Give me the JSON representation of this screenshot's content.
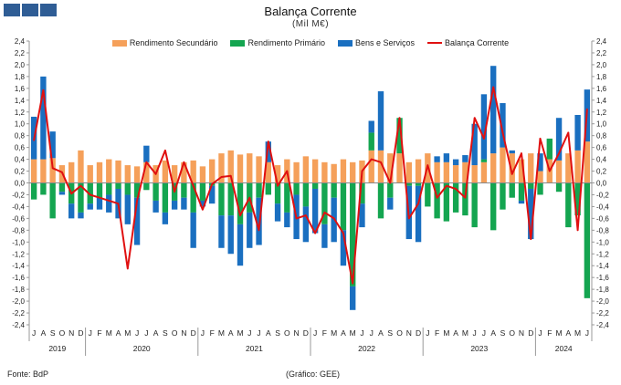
{
  "header": {
    "title": "Balança Corrente",
    "subtitle": "(Mil M€)"
  },
  "footer": {
    "source": "Fonte: BdP",
    "credit": "(Gráfico: GEE)"
  },
  "chart_data": {
    "type": "bar",
    "title": "Balança Corrente",
    "subtitle": "(Mil M€)",
    "ylim": [
      -2.4,
      2.4
    ],
    "ytick_step": 0.2,
    "grid": false,
    "legend_position": "top-center",
    "stacked": true,
    "month_labels": [
      "J",
      "A",
      "S",
      "O",
      "N",
      "D",
      "J",
      "F",
      "M",
      "A",
      "M",
      "J",
      "J",
      "A",
      "S",
      "O",
      "N",
      "D",
      "J",
      "F",
      "M",
      "A",
      "M",
      "J",
      "J",
      "A",
      "S",
      "O",
      "N",
      "D",
      "J",
      "F",
      "M",
      "A",
      "M",
      "J",
      "J",
      "A",
      "S",
      "O",
      "N",
      "D",
      "J",
      "F",
      "M",
      "A",
      "M",
      "J",
      "J",
      "A",
      "S",
      "O",
      "N",
      "D",
      "J",
      "F",
      "M",
      "A",
      "M",
      "J"
    ],
    "years": [
      {
        "label": "2019",
        "start": 0,
        "count": 6
      },
      {
        "label": "2020",
        "start": 6,
        "count": 12
      },
      {
        "label": "2021",
        "start": 18,
        "count": 12
      },
      {
        "label": "2022",
        "start": 30,
        "count": 12
      },
      {
        "label": "2023",
        "start": 42,
        "count": 12
      },
      {
        "label": "2024",
        "start": 54,
        "count": 6
      }
    ],
    "series": [
      {
        "name": "Rendimento Secundário",
        "kind": "bar",
        "color": "#f5a05a",
        "values": [
          0.4,
          0.4,
          0.42,
          0.3,
          0.35,
          0.55,
          0.3,
          0.35,
          0.4,
          0.38,
          0.3,
          0.28,
          0.35,
          0.3,
          0.38,
          0.3,
          0.35,
          0.38,
          0.28,
          0.4,
          0.5,
          0.55,
          0.48,
          0.5,
          0.45,
          0.35,
          0.3,
          0.4,
          0.35,
          0.45,
          0.4,
          0.35,
          0.32,
          0.4,
          0.35,
          0.38,
          0.55,
          0.55,
          0.5,
          0.5,
          0.35,
          0.4,
          0.5,
          0.35,
          0.35,
          0.3,
          0.35,
          0.3,
          0.35,
          0.5,
          0.6,
          0.5,
          0.4,
          0.5,
          0.2,
          0.4,
          0.38,
          0.5,
          0.55,
          0.7
        ]
      },
      {
        "name": "Rendimento Primário",
        "kind": "bar",
        "color": "#14a550",
        "values": [
          -0.28,
          -0.2,
          -0.6,
          -0.15,
          -0.35,
          -0.5,
          -0.35,
          -0.25,
          -0.2,
          -0.1,
          -0.2,
          -0.25,
          -0.12,
          -0.3,
          -0.5,
          -0.3,
          -0.25,
          -0.5,
          -0.3,
          -0.05,
          -0.55,
          -0.55,
          -0.7,
          -0.5,
          -0.25,
          -0.2,
          -0.35,
          -0.5,
          -0.2,
          -0.4,
          -0.1,
          -0.7,
          -0.25,
          -0.8,
          -1.75,
          -0.35,
          0.3,
          -0.6,
          -0.25,
          0.6,
          -0.05,
          -0.05,
          -0.4,
          -0.6,
          -0.65,
          -0.5,
          -0.55,
          -0.75,
          0.05,
          -0.8,
          -0.45,
          -0.25,
          -0.3,
          -0.1,
          -0.2,
          0.35,
          -0.15,
          -0.75,
          -0.55,
          -1.95
        ]
      },
      {
        "name": "Bens e Serviços",
        "kind": "bar",
        "color": "#1a6fc0",
        "values": [
          0.72,
          1.4,
          0.45,
          -0.05,
          -0.25,
          -0.1,
          -0.1,
          -0.2,
          -0.3,
          -0.5,
          -0.5,
          -0.8,
          0.28,
          -0.2,
          -0.2,
          -0.15,
          -0.2,
          -0.6,
          -0.1,
          -0.3,
          -0.55,
          -0.65,
          -0.7,
          -0.6,
          -0.8,
          0.35,
          -0.3,
          -0.25,
          -0.75,
          -0.6,
          -0.75,
          -0.4,
          -0.75,
          -0.6,
          -0.4,
          -0.4,
          0.2,
          1.0,
          -0.2,
          0.0,
          -0.9,
          -0.95,
          0.0,
          0.1,
          0.15,
          0.1,
          0.12,
          0.7,
          1.1,
          1.48,
          0.75,
          0.05,
          -0.05,
          -0.85,
          0.3,
          0.0,
          0.72,
          0.0,
          0.6,
          0.88
        ]
      },
      {
        "name": "Balança Corrente",
        "kind": "line",
        "color": "#e01010",
        "values": [
          0.72,
          1.57,
          0.25,
          0.18,
          -0.18,
          -0.05,
          -0.2,
          -0.25,
          -0.3,
          -0.35,
          -1.45,
          -0.3,
          0.35,
          0.15,
          0.55,
          -0.15,
          0.35,
          -0.05,
          -0.45,
          -0.02,
          0.1,
          0.12,
          -0.55,
          -0.25,
          -0.8,
          0.7,
          -0.05,
          0.2,
          -0.6,
          -0.55,
          -0.85,
          -0.5,
          -0.6,
          -0.85,
          -1.7,
          0.2,
          0.4,
          0.35,
          0.0,
          1.1,
          -0.6,
          -0.35,
          0.3,
          -0.25,
          -0.05,
          -0.1,
          -0.25,
          1.1,
          0.75,
          1.62,
          0.85,
          0.15,
          0.5,
          -0.95,
          0.75,
          0.2,
          0.5,
          0.85,
          -0.8,
          1.25
        ]
      }
    ]
  }
}
